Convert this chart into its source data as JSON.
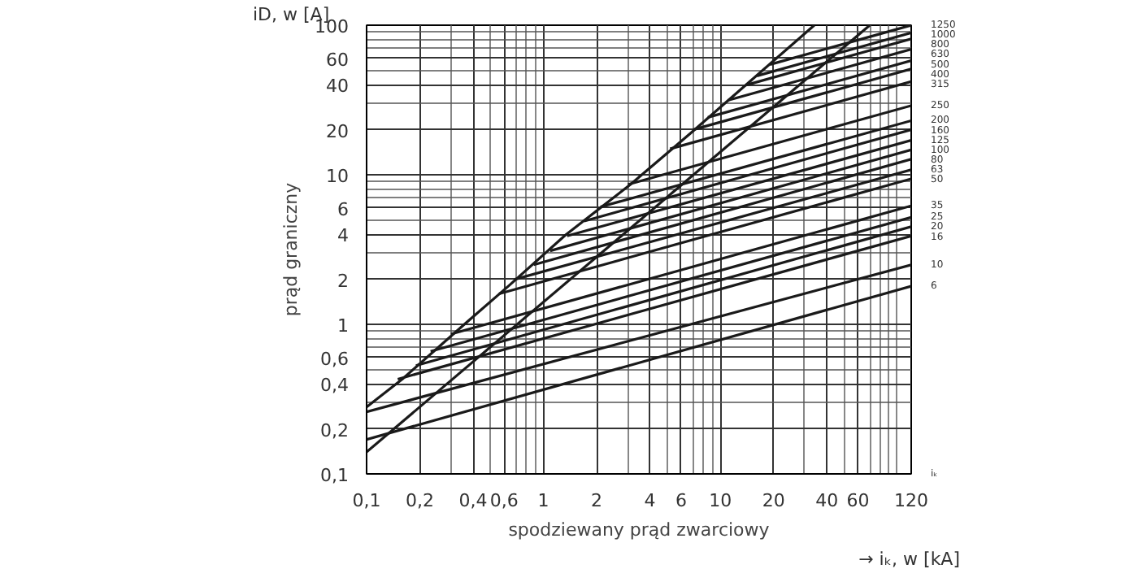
{
  "chart_data": {
    "type": "line",
    "xlabel": "spodziewany prąd zwarciowy",
    "ylabel": "prąd graniczny",
    "annotations": [
      "iD, w [A]",
      "→ iₖ, w [kA]",
      "iₖ"
    ],
    "log": "xy",
    "grid": true,
    "line_style": "solid",
    "xlim": [
      0.1,
      120
    ],
    "ylim": [
      0.1,
      100
    ],
    "xticks": [
      {
        "value": 0.1,
        "label": "0,1"
      },
      {
        "value": 0.2,
        "label": "0,2"
      },
      {
        "value": 0.4,
        "label": "0,4"
      },
      {
        "value": 0.6,
        "label": "0,6"
      },
      1,
      2,
      4,
      6,
      10,
      20,
      40,
      60,
      120
    ],
    "yticks": [
      {
        "value": 0.1,
        "label": "0,1"
      },
      {
        "value": 0.2,
        "label": "0,2"
      },
      {
        "value": 0.4,
        "label": "0,4"
      },
      {
        "value": 0.6,
        "label": "0,6"
      },
      1,
      2,
      4,
      6,
      10,
      20,
      40,
      60,
      100
    ],
    "series": [
      {
        "color": "#1a1a1a",
        "x": [
          0.1,
          0.159,
          0.357,
          0.64,
          1.33,
          3.1,
          6.8,
          34
        ],
        "values": [
          0.28,
          0.43,
          1.0,
          1.82,
          3.95,
          8.6,
          19,
          100
        ]
      },
      {
        "color": "#1a1a1a",
        "x": [
          0.1,
          70
        ],
        "values": [
          0.14,
          100
        ]
      },
      {
        "name": "1250",
        "color": "#1a1a1a",
        "x": [
          19.1,
          120
        ],
        "values": [
          54.6,
          100
        ]
      },
      {
        "name": "1000",
        "color": "#1a1a1a",
        "x": [
          16.1,
          120
        ],
        "values": [
          45.8,
          89
        ]
      },
      {
        "name": "800",
        "color": "#1a1a1a",
        "x": [
          14.0,
          120
        ],
        "values": [
          39.8,
          81
        ]
      },
      {
        "name": "630",
        "color": "#1a1a1a",
        "x": [
          11.0,
          120
        ],
        "values": [
          31.4,
          69
        ]
      },
      {
        "name": "500",
        "color": "#1a1a1a",
        "x": [
          8.5,
          120
        ],
        "values": [
          24.2,
          58
        ]
      },
      {
        "name": "400",
        "color": "#1a1a1a",
        "x": [
          7.0,
          120
        ],
        "values": [
          20.0,
          51
        ]
      },
      {
        "name": "315",
        "color": "#1a1a1a",
        "x": [
          5.2,
          120
        ],
        "values": [
          14.9,
          42
        ]
      },
      {
        "name": "250",
        "color": "#1a1a1a",
        "x": [
          3.0,
          120
        ],
        "values": [
          8.6,
          29
        ]
      },
      {
        "name": "200",
        "color": "#1a1a1a",
        "x": [
          2.1,
          120
        ],
        "values": [
          6.1,
          23
        ]
      },
      {
        "name": "160",
        "color": "#1a1a1a",
        "x": [
          1.7,
          120
        ],
        "values": [
          4.9,
          20
        ]
      },
      {
        "name": "125",
        "color": "#1a1a1a",
        "x": [
          1.36,
          120
        ],
        "values": [
          3.9,
          17
        ]
      },
      {
        "name": "100",
        "color": "#1a1a1a",
        "x": [
          1.09,
          120
        ],
        "values": [
          3.1,
          14.7
        ]
      },
      {
        "name": "80",
        "color": "#1a1a1a",
        "x": [
          0.88,
          120
        ],
        "values": [
          2.5,
          12.7
        ]
      },
      {
        "name": "63",
        "color": "#1a1a1a",
        "x": [
          0.69,
          120
        ],
        "values": [
          2.0,
          10.8
        ]
      },
      {
        "name": "50",
        "color": "#1a1a1a",
        "x": [
          0.56,
          120
        ],
        "values": [
          1.6,
          9.4
        ]
      },
      {
        "name": "35",
        "color": "#1a1a1a",
        "x": [
          0.3,
          120
        ],
        "values": [
          0.86,
          6.2
        ]
      },
      {
        "name": "25",
        "color": "#1a1a1a",
        "x": [
          0.23,
          120
        ],
        "values": [
          0.66,
          5.2
        ]
      },
      {
        "name": "20",
        "color": "#1a1a1a",
        "x": [
          0.19,
          120
        ],
        "values": [
          0.53,
          4.5
        ]
      },
      {
        "name": "16",
        "color": "#1a1a1a",
        "x": [
          0.15,
          120
        ],
        "values": [
          0.43,
          3.9
        ]
      },
      {
        "name": "10",
        "color": "#1a1a1a",
        "x": [
          0.1,
          120
        ],
        "values": [
          0.26,
          2.5
        ]
      },
      {
        "name": "6",
        "color": "#1a1a1a",
        "x": [
          0.1,
          120
        ],
        "values": [
          0.17,
          1.8
        ]
      }
    ]
  }
}
